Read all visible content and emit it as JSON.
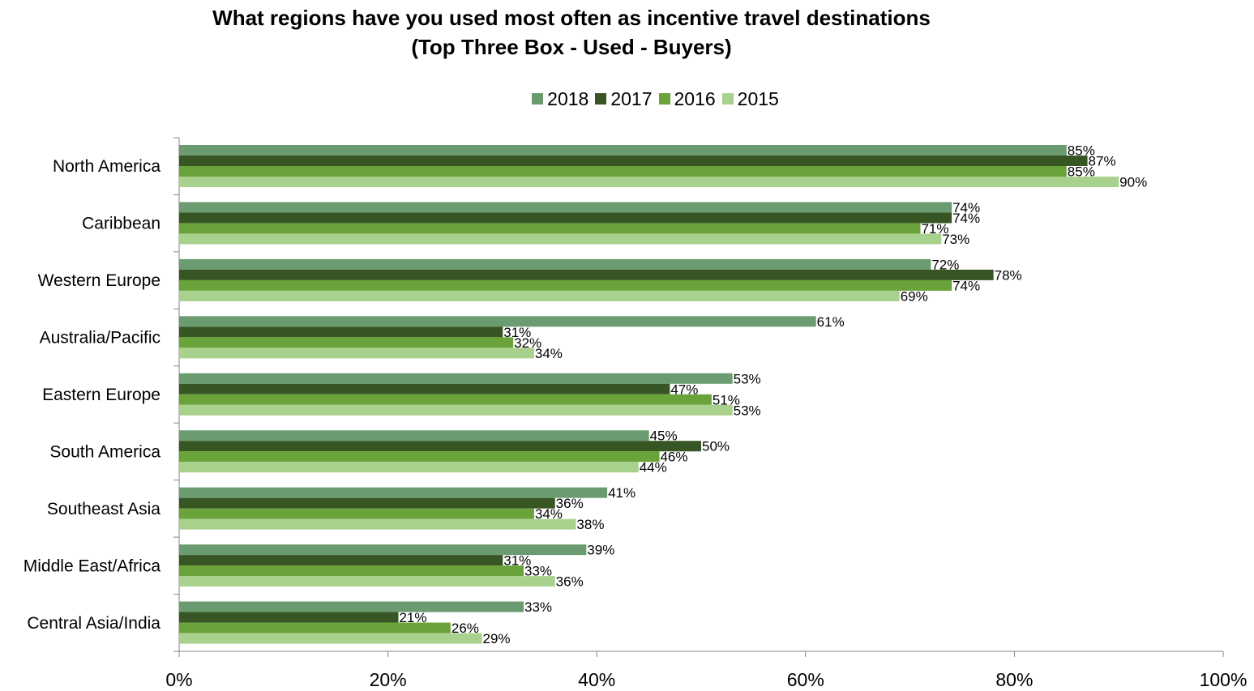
{
  "chart_data": {
    "type": "bar",
    "orientation": "horizontal",
    "title": "What regions have you used most often as incentive travel destinations",
    "subtitle": "(Top Three Box -  Used - Buyers)",
    "categories": [
      "North America",
      "Caribbean",
      "Western Europe",
      "Australia/Pacific",
      "Eastern Europe",
      "South America",
      "Southeast Asia",
      "Middle East/Africa",
      "Central Asia/India"
    ],
    "series": [
      {
        "name": "2018",
        "color": "#6b9b70",
        "values": [
          85,
          74,
          72,
          61,
          53,
          45,
          41,
          39,
          33
        ]
      },
      {
        "name": "2017",
        "color": "#375623",
        "values": [
          87,
          74,
          78,
          31,
          47,
          50,
          36,
          31,
          21
        ]
      },
      {
        "name": "2016",
        "color": "#6aa33a",
        "values": [
          85,
          71,
          74,
          32,
          51,
          46,
          34,
          33,
          26
        ]
      },
      {
        "name": "2015",
        "color": "#a9d18e",
        "values": [
          90,
          73,
          69,
          34,
          53,
          44,
          38,
          36,
          29
        ]
      }
    ],
    "xlim": [
      0,
      100
    ],
    "xticks": [
      "0%",
      "20%",
      "40%",
      "60%",
      "80%",
      "100%"
    ],
    "value_suffix": "%",
    "legend_position": "top",
    "grid": false
  }
}
